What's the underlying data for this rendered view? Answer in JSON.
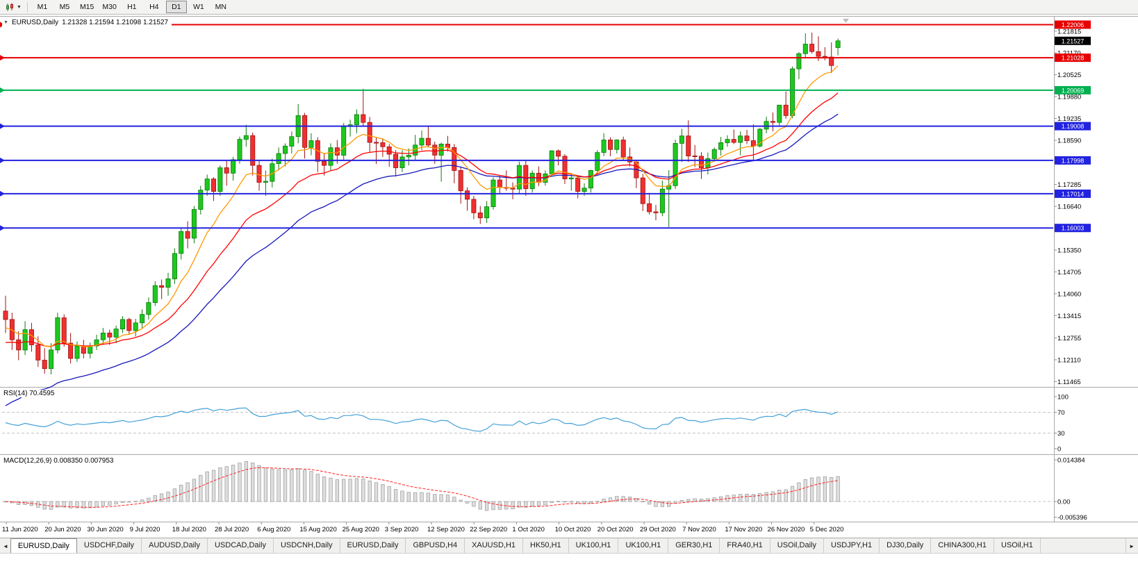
{
  "toolbar": {
    "timeframes": [
      "M1",
      "M5",
      "M15",
      "M30",
      "H1",
      "H4",
      "D1",
      "W1",
      "MN"
    ],
    "active_timeframe": "D1"
  },
  "chart": {
    "title": {
      "symbol": "EURUSD,Daily",
      "ohlc": "1.21328 1.21594 1.21098 1.21527"
    },
    "price_axis_labels": [
      "1.21815",
      "1.21170",
      "1.20525",
      "1.19880",
      "1.19235",
      "1.18590",
      "1.17945",
      "1.17285",
      "1.16640",
      "1.15995",
      "1.15350",
      "1.14705",
      "1.14060",
      "1.13415",
      "1.12755",
      "1.12110",
      "1.11465"
    ],
    "current_price_badge": {
      "text": "1.21527",
      "bg": "#000000",
      "fg": "#ffffff"
    }
  },
  "chart_data": {
    "type": "candlestick",
    "symbol": "EURUSD",
    "timeframe": "Daily",
    "title": "EURUSD,Daily",
    "ohlc_display": {
      "open": "1.21328",
      "high": "1.21594",
      "low": "1.21098",
      "close": "1.21527"
    },
    "y_range": [
      1.1133,
      1.222
    ],
    "x_labels": [
      "11 Jun 2020",
      "20 Jun 2020",
      "30 Jun 2020",
      "9 Jul 2020",
      "18 Jul 2020",
      "28 Jul 2020",
      "6 Aug 2020",
      "15 Aug 2020",
      "25 Aug 2020",
      "3 Sep 2020",
      "12 Sep 2020",
      "22 Sep 2020",
      "1 Oct 2020",
      "10 Oct 2020",
      "20 Oct 2020",
      "29 Oct 2020",
      "7 Nov 2020",
      "17 Nov 2020",
      "26 Nov 2020",
      "5 Dec 2020"
    ],
    "candle_colors": {
      "bull_fill": "#1ec81e",
      "bull_stroke": "#0b7a0b",
      "bear_fill": "#f03030",
      "bear_stroke": "#a01010"
    },
    "candles": [
      [
        1.1355,
        1.14,
        1.129,
        1.133
      ],
      [
        1.133,
        1.135,
        1.124,
        1.127
      ],
      [
        1.127,
        1.1295,
        1.121,
        1.124
      ],
      [
        1.124,
        1.1325,
        1.1225,
        1.13
      ],
      [
        1.13,
        1.132,
        1.1235,
        1.1255
      ],
      [
        1.1255,
        1.128,
        1.119,
        1.121
      ],
      [
        1.121,
        1.1245,
        1.117,
        1.1185
      ],
      [
        1.1185,
        1.126,
        1.1168,
        1.124
      ],
      [
        1.124,
        1.135,
        1.123,
        1.1335
      ],
      [
        1.1335,
        1.1345,
        1.125,
        1.126
      ],
      [
        1.126,
        1.129,
        1.12,
        1.1215
      ],
      [
        1.1215,
        1.1265,
        1.1205,
        1.1252
      ],
      [
        1.1252,
        1.127,
        1.1215,
        1.123
      ],
      [
        1.123,
        1.1262,
        1.1215,
        1.1252
      ],
      [
        1.1252,
        1.1285,
        1.124,
        1.127
      ],
      [
        1.127,
        1.1305,
        1.1255,
        1.129
      ],
      [
        1.129,
        1.13,
        1.1255,
        1.1278
      ],
      [
        1.1278,
        1.1312,
        1.126,
        1.1302
      ],
      [
        1.1302,
        1.134,
        1.129,
        1.133
      ],
      [
        1.133,
        1.1335,
        1.1285,
        1.1297
      ],
      [
        1.1297,
        1.1332,
        1.128,
        1.132
      ],
      [
        1.132,
        1.136,
        1.1305,
        1.1345
      ],
      [
        1.1345,
        1.1395,
        1.133,
        1.138
      ],
      [
        1.138,
        1.1443,
        1.137,
        1.143
      ],
      [
        1.143,
        1.1448,
        1.139,
        1.1425
      ],
      [
        1.1425,
        1.1468,
        1.14,
        1.145
      ],
      [
        1.145,
        1.154,
        1.1435,
        1.1525
      ],
      [
        1.1525,
        1.1602,
        1.1507,
        1.159
      ],
      [
        1.159,
        1.162,
        1.154,
        1.157
      ],
      [
        1.157,
        1.1665,
        1.1555,
        1.1655
      ],
      [
        1.1655,
        1.1725,
        1.164,
        1.1712
      ],
      [
        1.1712,
        1.1758,
        1.1695,
        1.1745
      ],
      [
        1.1745,
        1.175,
        1.168,
        1.1708
      ],
      [
        1.1708,
        1.1785,
        1.1695,
        1.1778
      ],
      [
        1.1778,
        1.1798,
        1.1725,
        1.1762
      ],
      [
        1.1762,
        1.181,
        1.174,
        1.1802
      ],
      [
        1.1802,
        1.187,
        1.179,
        1.1862
      ],
      [
        1.1862,
        1.1905,
        1.184,
        1.1873
      ],
      [
        1.1873,
        1.1882,
        1.1755,
        1.1785
      ],
      [
        1.1785,
        1.18,
        1.171,
        1.1735
      ],
      [
        1.1735,
        1.177,
        1.1695,
        1.1738
      ],
      [
        1.1738,
        1.1805,
        1.172,
        1.179
      ],
      [
        1.179,
        1.1838,
        1.177,
        1.182
      ],
      [
        1.182,
        1.185,
        1.1782,
        1.1842
      ],
      [
        1.1842,
        1.1885,
        1.182,
        1.187
      ],
      [
        1.187,
        1.1966,
        1.185,
        1.1932
      ],
      [
        1.1932,
        1.194,
        1.1805,
        1.1838
      ],
      [
        1.1838,
        1.188,
        1.1815,
        1.1858
      ],
      [
        1.1858,
        1.1868,
        1.1765,
        1.1797
      ],
      [
        1.1797,
        1.1822,
        1.1755,
        1.1785
      ],
      [
        1.1785,
        1.185,
        1.177,
        1.1837
      ],
      [
        1.1837,
        1.186,
        1.179,
        1.1815
      ],
      [
        1.1815,
        1.191,
        1.18,
        1.1902
      ],
      [
        1.1902,
        1.192,
        1.187,
        1.1905
      ],
      [
        1.1905,
        1.195,
        1.188,
        1.1935
      ],
      [
        1.1935,
        1.2011,
        1.19,
        1.1912
      ],
      [
        1.1912,
        1.1928,
        1.1822,
        1.1853
      ],
      [
        1.1853,
        1.1868,
        1.1789,
        1.1852
      ],
      [
        1.1852,
        1.1865,
        1.181,
        1.184
      ],
      [
        1.184,
        1.1848,
        1.1781,
        1.1818
      ],
      [
        1.1818,
        1.183,
        1.1752,
        1.1778
      ],
      [
        1.1778,
        1.183,
        1.1765,
        1.181
      ],
      [
        1.181,
        1.1835,
        1.1785,
        1.1815
      ],
      [
        1.1815,
        1.1875,
        1.18,
        1.1845
      ],
      [
        1.1845,
        1.1888,
        1.183,
        1.1865
      ],
      [
        1.1865,
        1.19,
        1.1838,
        1.1845
      ],
      [
        1.1845,
        1.1855,
        1.179,
        1.1815
      ],
      [
        1.1815,
        1.1852,
        1.1737,
        1.1848
      ],
      [
        1.1848,
        1.1872,
        1.1826,
        1.1838
      ],
      [
        1.1838,
        1.1848,
        1.1732,
        1.177
      ],
      [
        1.177,
        1.178,
        1.1672,
        1.171
      ],
      [
        1.171,
        1.172,
        1.1651,
        1.1685
      ],
      [
        1.1685,
        1.1695,
        1.1626,
        1.1645
      ],
      [
        1.1645,
        1.1665,
        1.1612,
        1.163
      ],
      [
        1.163,
        1.168,
        1.1615,
        1.1663
      ],
      [
        1.1663,
        1.175,
        1.1655,
        1.1742
      ],
      [
        1.1742,
        1.1755,
        1.17,
        1.172
      ],
      [
        1.172,
        1.177,
        1.171,
        1.1718
      ],
      [
        1.1718,
        1.1735,
        1.1685,
        1.1715
      ],
      [
        1.1715,
        1.1796,
        1.1703,
        1.1785
      ],
      [
        1.1785,
        1.1798,
        1.1695,
        1.1716
      ],
      [
        1.1716,
        1.177,
        1.1705,
        1.1762
      ],
      [
        1.1762,
        1.1782,
        1.1724,
        1.1735
      ],
      [
        1.1735,
        1.177,
        1.1725,
        1.176
      ],
      [
        1.176,
        1.183,
        1.1752,
        1.1828
      ],
      [
        1.1828,
        1.1832,
        1.1785,
        1.1812
      ],
      [
        1.1812,
        1.1818,
        1.173,
        1.1745
      ],
      [
        1.1745,
        1.1758,
        1.171,
        1.1748
      ],
      [
        1.1748,
        1.1752,
        1.1688,
        1.1708
      ],
      [
        1.1708,
        1.1732,
        1.1695,
        1.1718
      ],
      [
        1.1718,
        1.1772,
        1.1705,
        1.177
      ],
      [
        1.177,
        1.183,
        1.176,
        1.1823
      ],
      [
        1.1823,
        1.188,
        1.1812,
        1.186
      ],
      [
        1.186,
        1.1868,
        1.1812,
        1.1832
      ],
      [
        1.1832,
        1.1862,
        1.182,
        1.186
      ],
      [
        1.186,
        1.187,
        1.18,
        1.181
      ],
      [
        1.181,
        1.1838,
        1.1782,
        1.1795
      ],
      [
        1.1795,
        1.18,
        1.1718,
        1.1748
      ],
      [
        1.1748,
        1.176,
        1.165,
        1.1672
      ],
      [
        1.1672,
        1.1704,
        1.164,
        1.1648
      ],
      [
        1.1648,
        1.1668,
        1.1623,
        1.1645
      ],
      [
        1.1645,
        1.174,
        1.1635,
        1.1715
      ],
      [
        1.1715,
        1.1771,
        1.1603,
        1.1725
      ],
      [
        1.1725,
        1.1861,
        1.1715,
        1.185
      ],
      [
        1.185,
        1.1893,
        1.1795,
        1.1872
      ],
      [
        1.1872,
        1.1918,
        1.1795,
        1.1813
      ],
      [
        1.1813,
        1.1845,
        1.178,
        1.1812
      ],
      [
        1.1812,
        1.1824,
        1.1745,
        1.1778
      ],
      [
        1.1778,
        1.1823,
        1.1758,
        1.1805
      ],
      [
        1.1805,
        1.1838,
        1.1798,
        1.1832
      ],
      [
        1.1832,
        1.1869,
        1.1814,
        1.1852
      ],
      [
        1.1852,
        1.1874,
        1.184,
        1.1862
      ],
      [
        1.1862,
        1.1891,
        1.1848,
        1.1853
      ],
      [
        1.1853,
        1.1885,
        1.1815,
        1.1872
      ],
      [
        1.1872,
        1.189,
        1.1848,
        1.1858
      ],
      [
        1.1858,
        1.1906,
        1.18,
        1.1842
      ],
      [
        1.1842,
        1.1895,
        1.1838,
        1.1892
      ],
      [
        1.1892,
        1.1929,
        1.188,
        1.1915
      ],
      [
        1.1915,
        1.1941,
        1.1886,
        1.1912
      ],
      [
        1.1912,
        1.1963,
        1.19,
        1.1963
      ],
      [
        1.1963,
        1.2003,
        1.1923,
        1.1932
      ],
      [
        1.1932,
        1.2077,
        1.1924,
        1.207
      ],
      [
        1.207,
        1.2119,
        1.204,
        1.2115
      ],
      [
        1.2115,
        1.2175,
        1.2103,
        1.2143
      ],
      [
        1.2143,
        1.2177,
        1.2115,
        1.2121
      ],
      [
        1.2121,
        1.2166,
        1.2093,
        1.2107
      ],
      [
        1.2107,
        1.2134,
        1.2095,
        1.2105
      ],
      [
        1.2105,
        1.2148,
        1.2058,
        1.208
      ],
      [
        1.21328,
        1.21594,
        1.21098,
        1.21527
      ]
    ],
    "moving_averages": [
      {
        "name": "ma-fast",
        "period": 9,
        "seed": 1.13,
        "color": "#ff9900"
      },
      {
        "name": "ma-mid",
        "period": 20,
        "seed": 1.1255,
        "color": "#ff0000"
      },
      {
        "name": "ma-slow",
        "period": 34,
        "seed": 1.106,
        "color": "#1616bb"
      }
    ],
    "horizontal_lines": [
      {
        "price": 1.22006,
        "label": "1.22006",
        "color": "#e60000"
      },
      {
        "price": 1.21028,
        "label": "1.21028",
        "color": "#e60000"
      },
      {
        "price": 1.20069,
        "label": "1.20069",
        "color": "#00b050"
      },
      {
        "price": 1.19008,
        "label": "1.19008",
        "color": "#2222e0"
      },
      {
        "price": 1.17998,
        "label": "1.17998",
        "color": "#2222e0"
      },
      {
        "price": 1.17014,
        "label": "1.17014",
        "color": "#2222e0"
      },
      {
        "price": 1.16003,
        "label": "1.16003",
        "color": "#2222e0"
      }
    ],
    "indicators": [
      {
        "type": "RSI",
        "label": "RSI(14) 70.4595",
        "period": 14,
        "current": 70.4595,
        "levels": [
          "100",
          "70",
          "30",
          "0"
        ],
        "level_lines": [
          70,
          30
        ],
        "color": "#42a0d8",
        "ylim": [
          0,
          100
        ]
      },
      {
        "type": "MACD",
        "label": "MACD(12,26,9) 0.008350 0.007953",
        "fast": 12,
        "slow": 26,
        "signal": 9,
        "macd_value": 0.00835,
        "signal_value": 0.007953,
        "scale_labels": [
          "0.014384",
          "0.00",
          "-0.005396"
        ],
        "hist_fill": "#dedede",
        "hist_stroke": "#979797",
        "signal_color": "#ff2020"
      }
    ]
  },
  "tabs": [
    "EURUSD,Daily",
    "USDCHF,Daily",
    "AUDUSD,Daily",
    "USDCAD,Daily",
    "USDCNH,Daily",
    "EURUSD,Daily",
    "GBPUSD,H4",
    "XAUUSD,H1",
    "HK50,H1",
    "UK100,H1",
    "UK100,H1",
    "GER30,H1",
    "FRA40,H1",
    "USOil,Daily",
    "USDJPY,H1",
    "DJ30,Daily",
    "CHINA300,H1",
    "USOil,H1"
  ],
  "active_tab_index": 0
}
